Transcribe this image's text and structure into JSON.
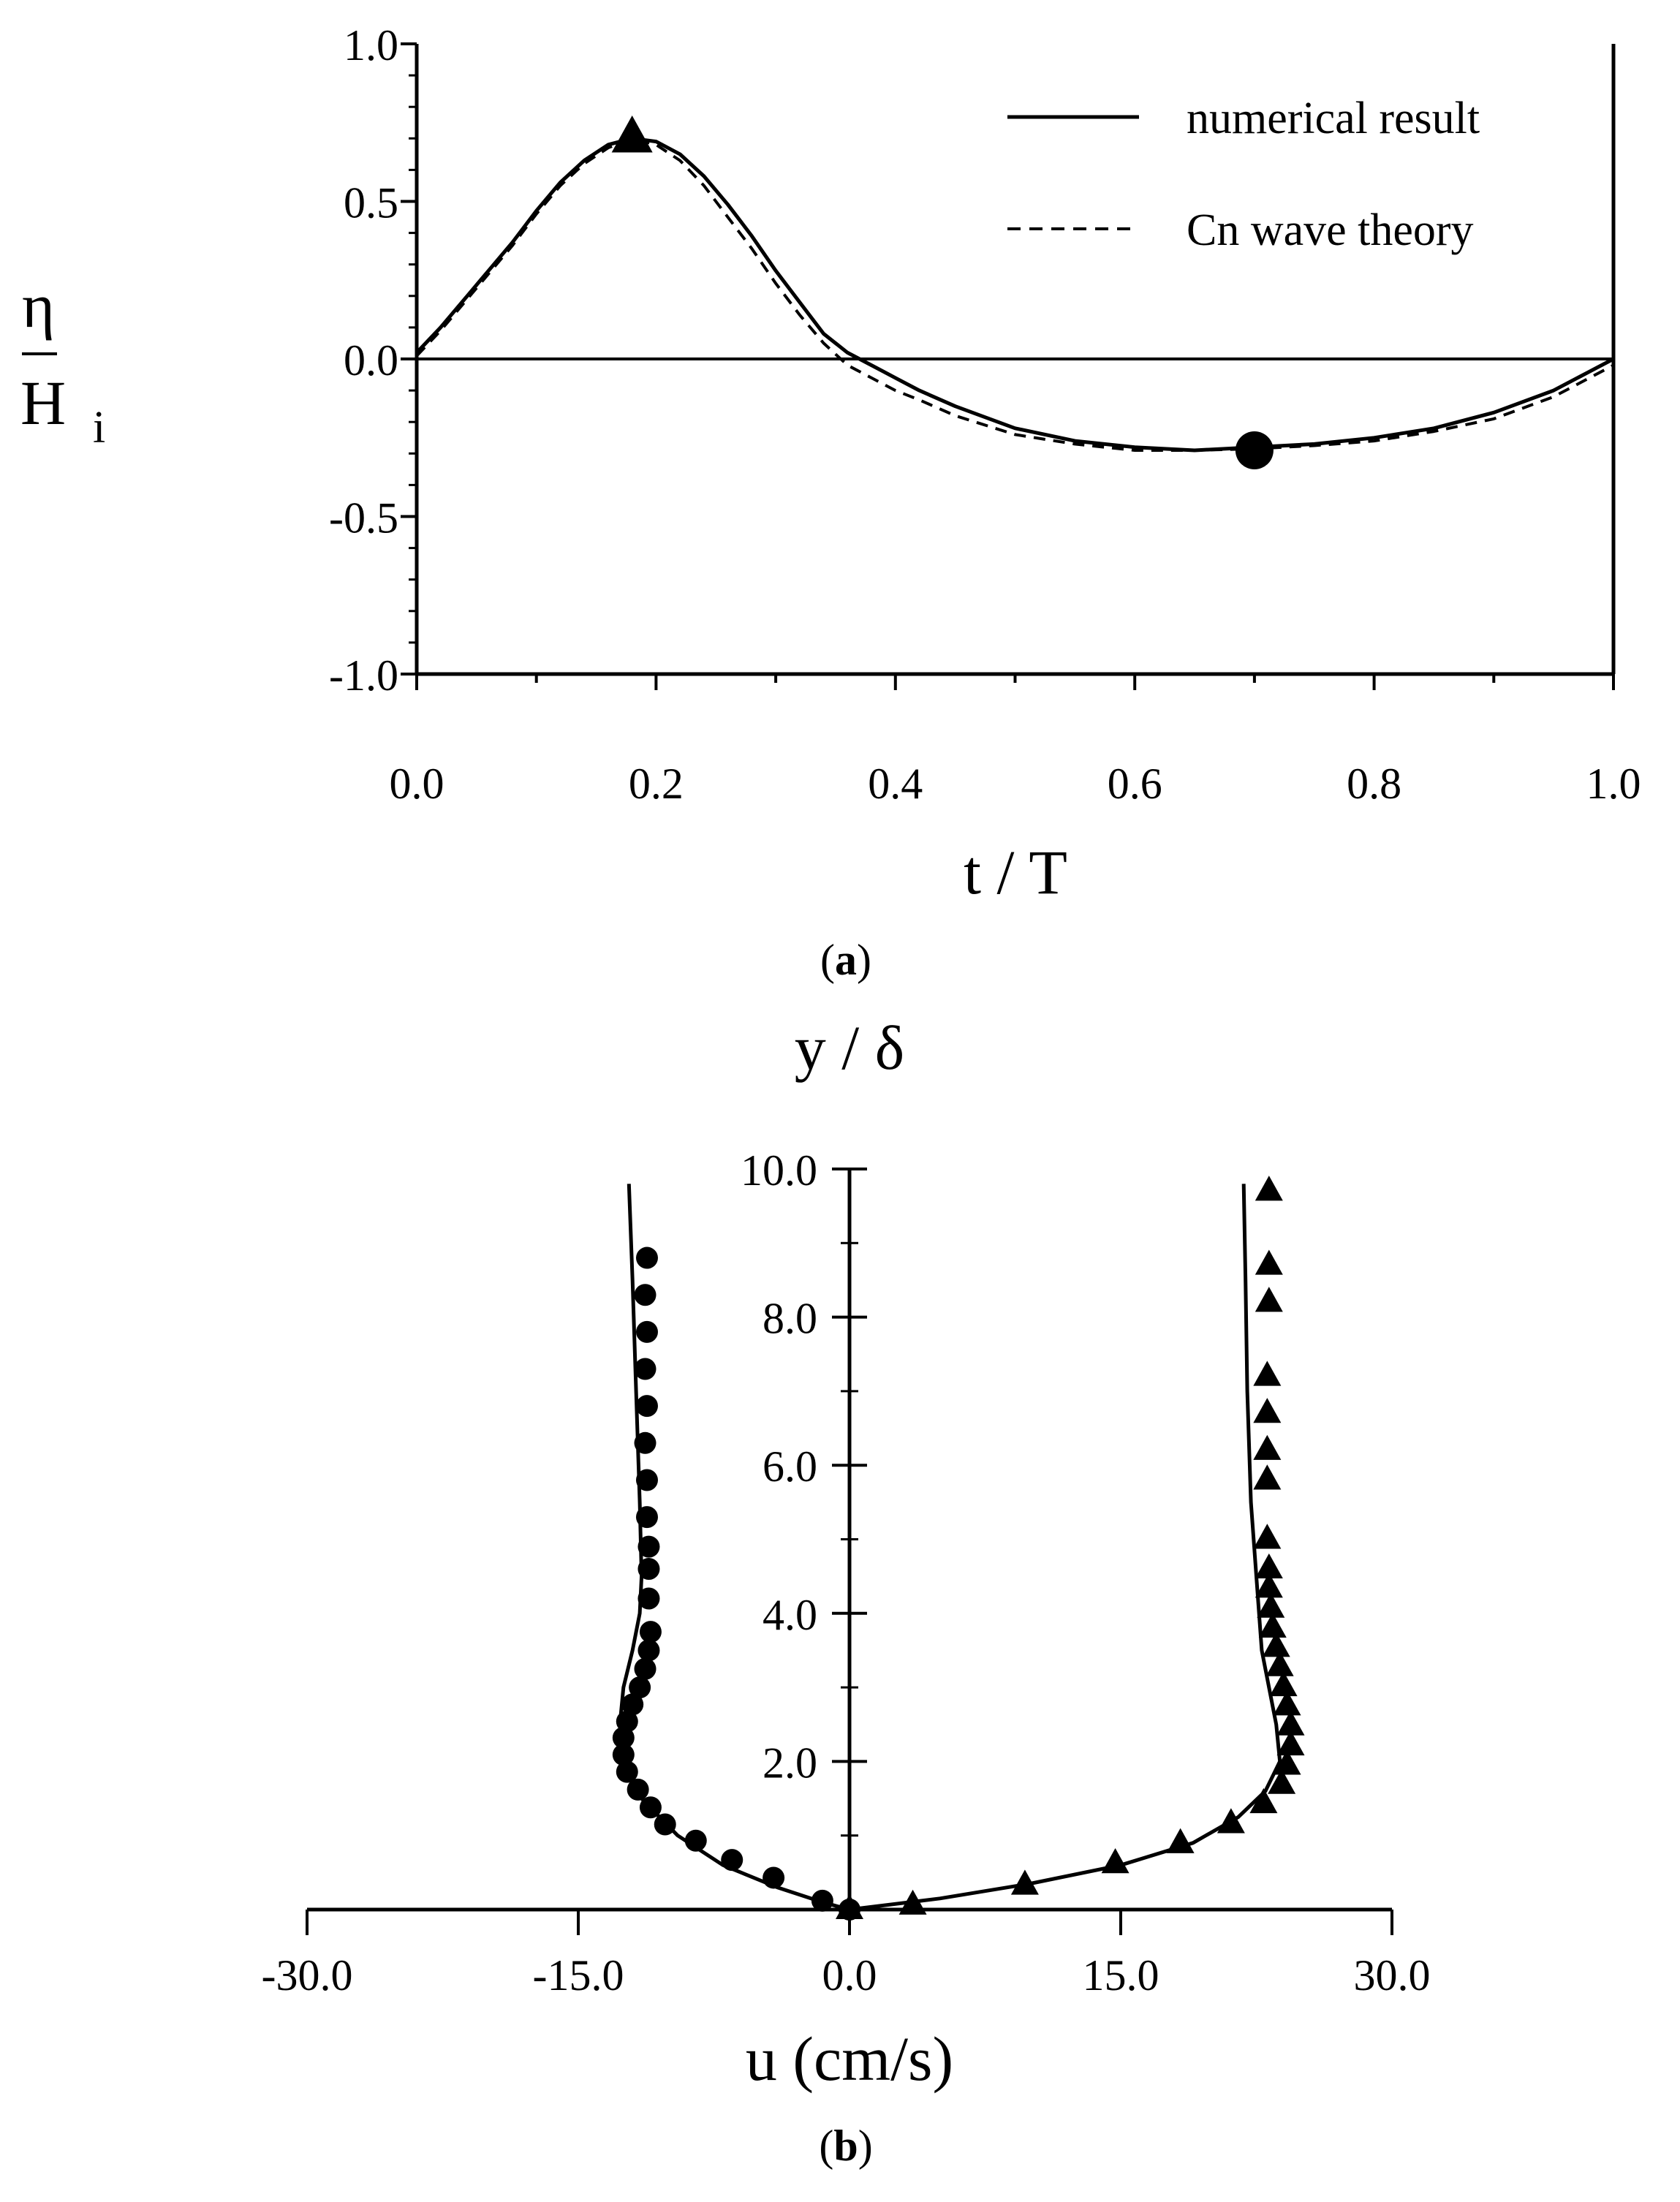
{
  "chart_data": [
    {
      "panel_label": {
        "open": "(",
        "letter": "a",
        "close": ")"
      },
      "type": "line",
      "xlabel": "t / T",
      "ylabel": {
        "numerator": "η",
        "denominator": "H",
        "subscript": "i"
      },
      "xlim": [
        0.0,
        1.0
      ],
      "ylim": [
        -1.0,
        1.0
      ],
      "xticks": [
        0.0,
        0.2,
        0.4,
        0.6,
        0.8,
        1.0
      ],
      "xtick_labels": [
        "0.0",
        "0.2",
        "0.4",
        "0.6",
        "0.8",
        "1.0"
      ],
      "yticks": [
        1.0,
        0.5,
        0.0,
        -0.5,
        -1.0
      ],
      "ytick_labels": [
        "1.0",
        "0.5",
        "0.0",
        "-0.5",
        "-1.0"
      ],
      "legend_position": "top-right",
      "grid": false,
      "zero_line": true,
      "series": [
        {
          "name": "numerical result",
          "style": "solid",
          "x": [
            0.0,
            0.02,
            0.04,
            0.06,
            0.08,
            0.1,
            0.12,
            0.14,
            0.16,
            0.18,
            0.2,
            0.22,
            0.24,
            0.26,
            0.28,
            0.3,
            0.32,
            0.34,
            0.36,
            0.38,
            0.4,
            0.42,
            0.45,
            0.5,
            0.55,
            0.6,
            0.65,
            0.7,
            0.75,
            0.8,
            0.85,
            0.9,
            0.95,
            1.0
          ],
          "y": [
            0.02,
            0.1,
            0.19,
            0.28,
            0.37,
            0.47,
            0.56,
            0.63,
            0.68,
            0.7,
            0.69,
            0.65,
            0.58,
            0.49,
            0.39,
            0.28,
            0.18,
            0.08,
            0.02,
            -0.02,
            -0.06,
            -0.1,
            -0.15,
            -0.22,
            -0.26,
            -0.28,
            -0.29,
            -0.28,
            -0.27,
            -0.25,
            -0.22,
            -0.17,
            -0.1,
            0.0
          ]
        },
        {
          "name": "Cn wave theory",
          "style": "dashed",
          "x": [
            0.0,
            0.02,
            0.04,
            0.06,
            0.08,
            0.1,
            0.12,
            0.14,
            0.16,
            0.18,
            0.2,
            0.22,
            0.24,
            0.26,
            0.28,
            0.3,
            0.32,
            0.34,
            0.36,
            0.38,
            0.4,
            0.42,
            0.45,
            0.5,
            0.55,
            0.6,
            0.65,
            0.7,
            0.75,
            0.8,
            0.85,
            0.9,
            0.95,
            1.0
          ],
          "y": [
            0.01,
            0.09,
            0.18,
            0.27,
            0.36,
            0.46,
            0.55,
            0.62,
            0.67,
            0.7,
            0.68,
            0.63,
            0.55,
            0.45,
            0.35,
            0.24,
            0.14,
            0.05,
            -0.02,
            -0.06,
            -0.1,
            -0.13,
            -0.18,
            -0.24,
            -0.27,
            -0.29,
            -0.29,
            -0.285,
            -0.275,
            -0.26,
            -0.23,
            -0.19,
            -0.12,
            -0.02
          ]
        }
      ],
      "markers": [
        {
          "shape": "triangle",
          "x": 0.18,
          "y": 0.7
        },
        {
          "shape": "circle",
          "x": 0.7,
          "y": -0.29
        }
      ]
    },
    {
      "panel_label": {
        "open": "(",
        "letter": "b",
        "close": ")"
      },
      "type": "scatter",
      "xlabel": "u (cm/s)",
      "ylabel": "y / δ",
      "xlim": [
        -30.0,
        30.0
      ],
      "ylim": [
        0.0,
        10.0
      ],
      "xticks": [
        -30.0,
        -15.0,
        0.0,
        15.0,
        30.0
      ],
      "xtick_labels": [
        "-30.0",
        "-15.0",
        "0.0",
        "15.0",
        "30.0"
      ],
      "yticks": [
        2.0,
        4.0,
        6.0,
        8.0,
        10.0
      ],
      "ytick_labels": [
        "2.0",
        "4.0",
        "6.0",
        "8.0",
        "10.0"
      ],
      "grid": false,
      "series": [
        {
          "style": "solid-line",
          "u": [
            0.0,
            -1.5,
            -4,
            -7,
            -9.5,
            -11.5,
            -12.5,
            -12.7,
            -12.5,
            -12.0,
            -11.6,
            -11.5,
            -11.6,
            -11.8,
            -12.0,
            -12.2
          ],
          "y": [
            0.0,
            0.1,
            0.3,
            0.6,
            1.0,
            1.5,
            2.0,
            2.5,
            3.0,
            3.5,
            4.0,
            4.5,
            5.5,
            7.0,
            8.5,
            9.8
          ]
        },
        {
          "style": "solid-line",
          "u": [
            0.0,
            5,
            10,
            15,
            19,
            21.5,
            23.0,
            23.8,
            23.6,
            23.2,
            22.8,
            22.5,
            22.2,
            22.0,
            21.9,
            21.8
          ],
          "y": [
            0.0,
            0.15,
            0.35,
            0.6,
            0.9,
            1.25,
            1.6,
            2.0,
            2.5,
            3.0,
            3.5,
            4.5,
            5.5,
            7.0,
            8.5,
            9.8
          ]
        },
        {
          "style": "circle-markers",
          "u": [
            0.0,
            -1.5,
            -4.2,
            -6.5,
            -8.5,
            -10.2,
            -11.0,
            -11.7,
            -12.3,
            -12.5,
            -12.5,
            -12.3,
            -12.0,
            -11.6,
            -11.3,
            -11.1,
            -11.0,
            -11.1,
            -11.1,
            -11.1,
            -11.2,
            -11.2,
            -11.3,
            -11.2,
            -11.3,
            -11.2,
            -11.3,
            -11.2
          ],
          "y": [
            0.0,
            0.12,
            0.43,
            0.67,
            0.93,
            1.15,
            1.38,
            1.62,
            1.86,
            2.09,
            2.32,
            2.54,
            2.77,
            3.0,
            3.25,
            3.5,
            3.75,
            4.2,
            4.6,
            4.9,
            5.3,
            5.8,
            6.3,
            6.8,
            7.3,
            7.8,
            8.3,
            8.8
          ]
        },
        {
          "style": "triangle-markers",
          "u": [
            0.0,
            3.5,
            9.7,
            14.7,
            18.3,
            21.1,
            22.9,
            23.9,
            24.2,
            24.4,
            24.4,
            24.2,
            24.0,
            23.8,
            23.6,
            23.4,
            23.3,
            23.2,
            23.2,
            23.1,
            23.1,
            23.1,
            23.1,
            23.1,
            23.2,
            23.2,
            23.2
          ],
          "y": [
            0.0,
            0.06,
            0.33,
            0.62,
            0.89,
            1.16,
            1.43,
            1.69,
            1.95,
            2.21,
            2.48,
            2.75,
            3.01,
            3.28,
            3.54,
            3.8,
            4.07,
            4.34,
            4.6,
            5.0,
            5.8,
            6.2,
            6.7,
            7.2,
            8.2,
            8.7,
            9.7
          ]
        }
      ]
    }
  ]
}
